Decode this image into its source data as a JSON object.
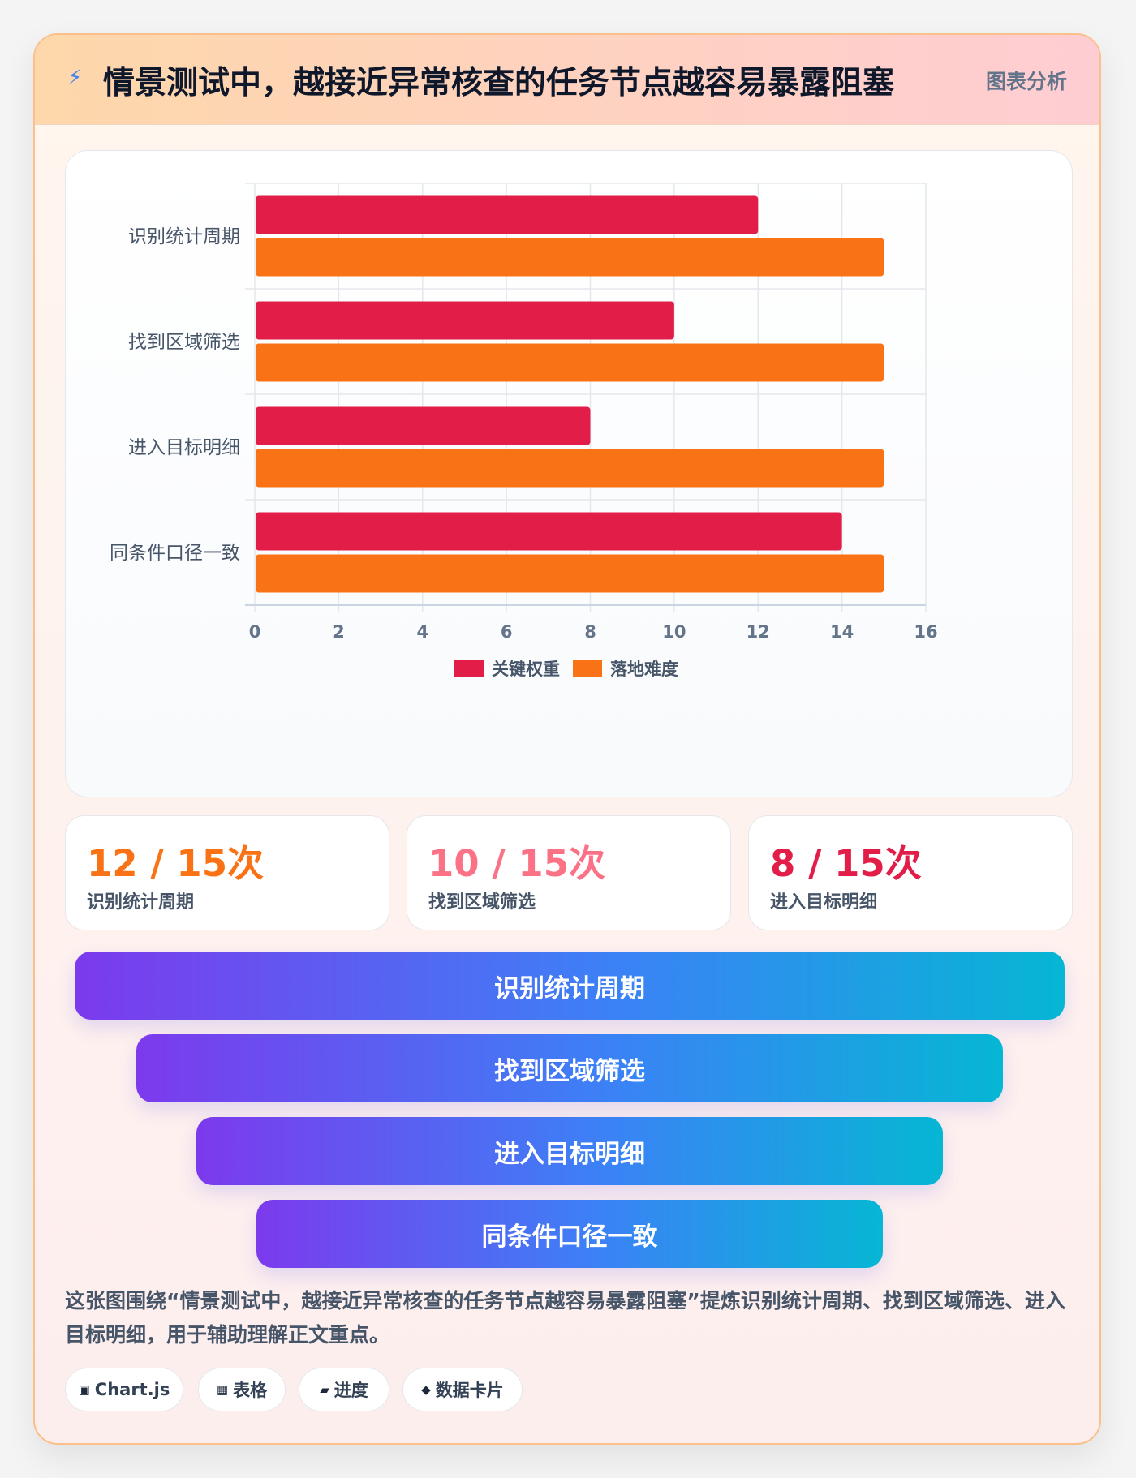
{
  "header": {
    "icon": "lightning-icon",
    "title": "情景测试中，越接近异常核查的任务节点越容易暴露阻塞",
    "tag": "图表分析"
  },
  "chart_data": {
    "type": "bar",
    "orientation": "horizontal",
    "categories": [
      "识别统计周期",
      "找到区域筛选",
      "进入目标明细",
      "同条件口径一致"
    ],
    "series": [
      {
        "name": "关键权重",
        "values": [
          12,
          10,
          8,
          14
        ],
        "color": "#e11d48"
      },
      {
        "name": "落地难度",
        "values": [
          15,
          15,
          15,
          15
        ],
        "color": "#f97316"
      }
    ],
    "xlim": [
      0,
      16
    ],
    "xticks": [
      "0",
      "2",
      "4",
      "6",
      "8",
      "10",
      "12",
      "14",
      "16"
    ],
    "grid": true,
    "legend_position": "bottom"
  },
  "stats": [
    {
      "value": "12 / 15次",
      "label": "识别统计周期",
      "color": "#f97316"
    },
    {
      "value": "10 / 15次",
      "label": "找到区域筛选",
      "color": "#fb7185"
    },
    {
      "value": "8 / 15次",
      "label": "进入目标明细",
      "color": "#e11d48"
    }
  ],
  "funnel": [
    "识别统计周期",
    "找到区域筛选",
    "进入目标明细",
    "同条件口径一致"
  ],
  "description": "这张图围绕“情景测试中，越接近异常核查的任务节点越容易暴露阻塞”提炼识别统计周期、找到区域筛选、进入目标明细，用于辅助理解正文重点。",
  "chips": [
    {
      "icon": "▣",
      "label": "Chart.js"
    },
    {
      "icon": "▦",
      "label": "表格"
    },
    {
      "icon": "▰",
      "label": "进度"
    },
    {
      "icon": "◆",
      "label": "数据卡片"
    }
  ]
}
